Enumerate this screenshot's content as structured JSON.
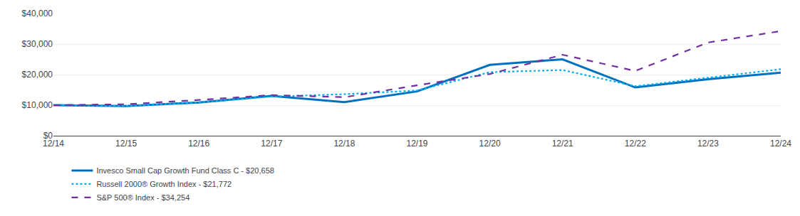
{
  "chart_data": {
    "type": "line",
    "categories": [
      "12/14",
      "12/15",
      "12/16",
      "12/17",
      "12/18",
      "12/19",
      "12/20",
      "12/21",
      "12/22",
      "12/23",
      "12/24"
    ],
    "series": [
      {
        "name": "Invesco Small Cap Growth Fund Class C - $20,658",
        "color": "#0070c0",
        "line_style": "solid",
        "values": [
          10000,
          9700,
          10900,
          13000,
          11000,
          14500,
          23200,
          25000,
          15800,
          18500,
          20658
        ]
      },
      {
        "name": "Russell 2000® Growth Index - $21,772",
        "color": "#00b0f0",
        "line_style": "dotted",
        "values": [
          10000,
          9700,
          10900,
          12800,
          13600,
          14800,
          20800,
          21500,
          16200,
          19000,
          21772
        ]
      },
      {
        "name": "S&P 500® Index - $34,254",
        "color": "#7030a0",
        "line_style": "dashed",
        "values": [
          10000,
          10300,
          11700,
          13300,
          12600,
          16500,
          20200,
          26500,
          21200,
          30500,
          34254
        ]
      }
    ],
    "ylim": [
      0,
      40000
    ],
    "yticks": [
      {
        "value": 0,
        "label": "$0"
      },
      {
        "value": 10000,
        "label": "$10,000"
      },
      {
        "value": 20000,
        "label": "$20,000"
      },
      {
        "value": 30000,
        "label": "$30,000"
      },
      {
        "value": 40000,
        "label": "$40,000"
      }
    ],
    "grid": true,
    "legend": "bottom"
  }
}
